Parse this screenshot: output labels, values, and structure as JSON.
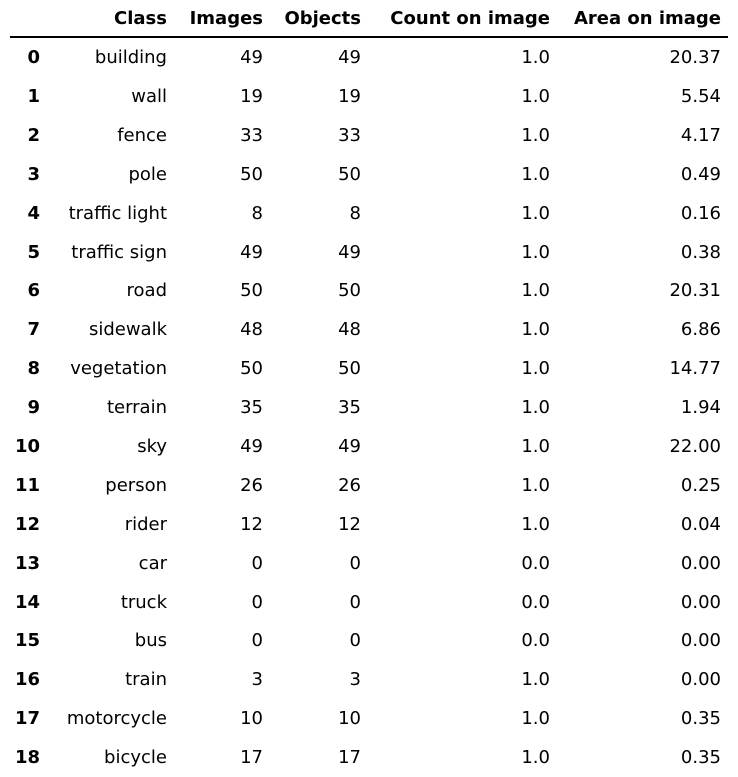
{
  "chart_data": {
    "type": "table",
    "columns": [
      "",
      "Class",
      "Images",
      "Objects",
      "Count on image",
      "Area on image"
    ],
    "rows": [
      {
        "index": "0",
        "class": "building",
        "images": "49",
        "objects": "49",
        "count_on_image": "1.0",
        "area_on_image": "20.37"
      },
      {
        "index": "1",
        "class": "wall",
        "images": "19",
        "objects": "19",
        "count_on_image": "1.0",
        "area_on_image": "5.54"
      },
      {
        "index": "2",
        "class": "fence",
        "images": "33",
        "objects": "33",
        "count_on_image": "1.0",
        "area_on_image": "4.17"
      },
      {
        "index": "3",
        "class": "pole",
        "images": "50",
        "objects": "50",
        "count_on_image": "1.0",
        "area_on_image": "0.49"
      },
      {
        "index": "4",
        "class": "traffic light",
        "images": "8",
        "objects": "8",
        "count_on_image": "1.0",
        "area_on_image": "0.16"
      },
      {
        "index": "5",
        "class": "traffic sign",
        "images": "49",
        "objects": "49",
        "count_on_image": "1.0",
        "area_on_image": "0.38"
      },
      {
        "index": "6",
        "class": "road",
        "images": "50",
        "objects": "50",
        "count_on_image": "1.0",
        "area_on_image": "20.31"
      },
      {
        "index": "7",
        "class": "sidewalk",
        "images": "48",
        "objects": "48",
        "count_on_image": "1.0",
        "area_on_image": "6.86"
      },
      {
        "index": "8",
        "class": "vegetation",
        "images": "50",
        "objects": "50",
        "count_on_image": "1.0",
        "area_on_image": "14.77"
      },
      {
        "index": "9",
        "class": "terrain",
        "images": "35",
        "objects": "35",
        "count_on_image": "1.0",
        "area_on_image": "1.94"
      },
      {
        "index": "10",
        "class": "sky",
        "images": "49",
        "objects": "49",
        "count_on_image": "1.0",
        "area_on_image": "22.00"
      },
      {
        "index": "11",
        "class": "person",
        "images": "26",
        "objects": "26",
        "count_on_image": "1.0",
        "area_on_image": "0.25"
      },
      {
        "index": "12",
        "class": "rider",
        "images": "12",
        "objects": "12",
        "count_on_image": "1.0",
        "area_on_image": "0.04"
      },
      {
        "index": "13",
        "class": "car",
        "images": "0",
        "objects": "0",
        "count_on_image": "0.0",
        "area_on_image": "0.00"
      },
      {
        "index": "14",
        "class": "truck",
        "images": "0",
        "objects": "0",
        "count_on_image": "0.0",
        "area_on_image": "0.00"
      },
      {
        "index": "15",
        "class": "bus",
        "images": "0",
        "objects": "0",
        "count_on_image": "0.0",
        "area_on_image": "0.00"
      },
      {
        "index": "16",
        "class": "train",
        "images": "3",
        "objects": "3",
        "count_on_image": "1.0",
        "area_on_image": "0.00"
      },
      {
        "index": "17",
        "class": "motorcycle",
        "images": "10",
        "objects": "10",
        "count_on_image": "1.0",
        "area_on_image": "0.35"
      },
      {
        "index": "18",
        "class": "bicycle",
        "images": "17",
        "objects": "17",
        "count_on_image": "1.0",
        "area_on_image": "0.35"
      }
    ]
  }
}
